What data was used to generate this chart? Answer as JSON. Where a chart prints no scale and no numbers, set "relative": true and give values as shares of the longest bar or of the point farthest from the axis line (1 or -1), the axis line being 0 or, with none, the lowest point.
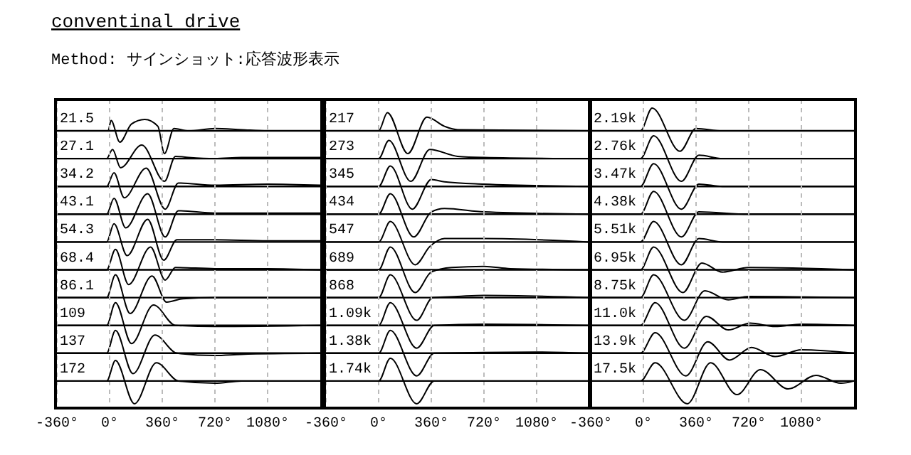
{
  "chart_data": [
    {
      "type": "other",
      "title": "conventinal drive",
      "subtitle": "Method: サインショット:応答波形表示"
    },
    {
      "type": "line",
      "title": "21.5",
      "relative": true,
      "color": "#000000",
      "xlim": [
        -360,
        1440
      ],
      "x": [
        -360,
        -10,
        10,
        70,
        150,
        240,
        330,
        375,
        440,
        540,
        720,
        900,
        1080,
        1440
      ],
      "values": [
        0,
        0,
        0.45,
        -0.5,
        0.3,
        0.5,
        0.2,
        -1,
        0.1,
        0,
        0.1,
        0.05,
        0,
        0
      ]
    },
    {
      "type": "line",
      "title": "27.1",
      "relative": true,
      "color": "#000000",
      "xlim": [
        -360,
        1440
      ],
      "x": [
        -360,
        -20,
        20,
        75,
        220,
        375,
        450,
        540,
        720,
        900,
        1440
      ],
      "values": [
        0,
        0,
        0.4,
        -0.4,
        0.6,
        -1,
        0.1,
        0.05,
        0,
        0.05,
        0.05
      ]
    },
    {
      "type": "line",
      "title": "34.2",
      "relative": true,
      "color": "#000000",
      "xlim": [
        -360,
        1440
      ],
      "x": [
        -360,
        -20,
        30,
        100,
        250,
        380,
        470,
        720,
        1080,
        1440
      ],
      "values": [
        0,
        0,
        0.6,
        -0.5,
        0.8,
        -1,
        0.15,
        0.05,
        0.1,
        0.05
      ]
    },
    {
      "type": "line",
      "title": "43.1",
      "relative": true,
      "color": "#000000",
      "xlim": [
        -360,
        1440
      ],
      "x": [
        -360,
        -20,
        30,
        110,
        260,
        380,
        470,
        720,
        1080,
        1440
      ],
      "values": [
        0,
        0,
        0.7,
        -0.6,
        0.9,
        -1,
        0.15,
        0.05,
        0.05,
        0.05
      ]
    },
    {
      "type": "line",
      "title": "54.3",
      "relative": true,
      "color": "#000000",
      "xlim": [
        -360,
        1440
      ],
      "x": [
        -360,
        -20,
        30,
        120,
        260,
        370,
        460,
        720,
        1080,
        1440
      ],
      "values": [
        0,
        0,
        0.8,
        -0.6,
        1,
        -0.8,
        0.1,
        0.1,
        0.05,
        0.05
      ]
    },
    {
      "type": "line",
      "title": "68.4",
      "relative": true,
      "color": "#000000",
      "xlim": [
        -360,
        1440
      ],
      "x": [
        -360,
        -20,
        40,
        130,
        280,
        380,
        450,
        720,
        1080,
        1440
      ],
      "values": [
        0,
        0,
        0.9,
        -0.65,
        1,
        -0.45,
        0.1,
        0.05,
        0.05,
        0
      ]
    },
    {
      "type": "line",
      "title": "86.1",
      "relative": true,
      "color": "#000000",
      "xlim": [
        -360,
        1440
      ],
      "x": [
        -360,
        -20,
        40,
        140,
        290,
        390,
        500,
        720,
        1440
      ],
      "values": [
        0,
        0,
        1,
        -0.7,
        0.95,
        -0.2,
        -0.05,
        0,
        0
      ]
    },
    {
      "type": "line",
      "title": "109",
      "relative": true,
      "color": "#000000",
      "xlim": [
        -360,
        1440
      ],
      "x": [
        -360,
        -20,
        40,
        150,
        300,
        450,
        720,
        1440
      ],
      "values": [
        0,
        0,
        1,
        -0.8,
        0.9,
        0,
        -0.05,
        0
      ]
    },
    {
      "type": "line",
      "title": "137",
      "relative": true,
      "color": "#000000",
      "xlim": [
        -360,
        1440
      ],
      "x": [
        -360,
        -20,
        40,
        160,
        310,
        460,
        720,
        900,
        1440
      ],
      "values": [
        0,
        0,
        1,
        -0.9,
        0.8,
        0,
        -0.1,
        -0.05,
        0
      ]
    },
    {
      "type": "line",
      "title": "172",
      "relative": true,
      "color": "#000000",
      "grid": "x",
      "xlim": [
        -360,
        1440
      ],
      "xticks": [
        {
          "value": -360,
          "label": "-360°"
        },
        {
          "value": 0,
          "label": "0°"
        },
        {
          "value": 360,
          "label": "360°"
        },
        {
          "value": 720,
          "label": "720°"
        },
        {
          "value": 1080,
          "label": "1080°"
        }
      ],
      "x": [
        -360,
        -20,
        40,
        170,
        320,
        470,
        720,
        900,
        1440
      ],
      "values": [
        0,
        0,
        0.9,
        -1,
        0.8,
        0,
        -0.1,
        0,
        0
      ]
    },
    {
      "type": "line",
      "title": "217",
      "relative": true,
      "color": "#000000",
      "xlim": [
        -360,
        1440
      ],
      "x": [
        -360,
        0,
        60,
        200,
        330,
        450,
        540,
        1440
      ],
      "values": [
        0,
        0,
        0.8,
        -1,
        0.6,
        0.2,
        0.05,
        0
      ]
    },
    {
      "type": "line",
      "title": "273",
      "relative": true,
      "color": "#000000",
      "xlim": [
        -360,
        1440
      ],
      "x": [
        -360,
        0,
        70,
        220,
        350,
        540,
        720,
        1440
      ],
      "values": [
        0,
        0,
        0.8,
        -1,
        0.4,
        0.1,
        0.05,
        0
      ]
    },
    {
      "type": "line",
      "title": "345",
      "relative": true,
      "color": "#000000",
      "xlim": [
        -360,
        1440
      ],
      "x": [
        -360,
        0,
        80,
        230,
        360,
        450,
        720,
        1440
      ],
      "values": [
        0,
        0,
        0.9,
        -1,
        0.3,
        0.2,
        0.1,
        0
      ]
    },
    {
      "type": "line",
      "title": "434",
      "relative": true,
      "color": "#000000",
      "xlim": [
        -360,
        1440
      ],
      "x": [
        -360,
        0,
        80,
        240,
        360,
        450,
        720,
        1440
      ],
      "values": [
        0,
        0,
        0.9,
        -1,
        0.1,
        0.25,
        0.1,
        0
      ]
    },
    {
      "type": "line",
      "title": "547",
      "relative": true,
      "color": "#000000",
      "xlim": [
        -360,
        1440
      ],
      "x": [
        -360,
        0,
        80,
        250,
        350,
        450,
        720,
        1440
      ],
      "values": [
        0,
        0,
        0.9,
        -1,
        -0.2,
        0.15,
        0.15,
        0
      ]
    },
    {
      "type": "line",
      "title": "689",
      "relative": true,
      "color": "#000000",
      "xlim": [
        -360,
        1440
      ],
      "x": [
        -360,
        0,
        80,
        250,
        360,
        500,
        720,
        900,
        1440
      ],
      "values": [
        0,
        0,
        1,
        -1,
        -0.1,
        0.1,
        0.15,
        0.05,
        0
      ]
    },
    {
      "type": "line",
      "title": "868",
      "relative": true,
      "color": "#000000",
      "xlim": [
        -360,
        1440
      ],
      "x": [
        -360,
        0,
        80,
        260,
        370,
        540,
        720,
        1440
      ],
      "values": [
        0,
        0,
        1,
        -1,
        0,
        0.05,
        0.1,
        0
      ]
    },
    {
      "type": "line",
      "title": "1.09k",
      "relative": true,
      "color": "#000000",
      "xlim": [
        -360,
        1440
      ],
      "x": [
        -360,
        0,
        80,
        260,
        380,
        720,
        1440
      ],
      "values": [
        0,
        0,
        1,
        -1,
        0,
        0.05,
        0
      ]
    },
    {
      "type": "line",
      "title": "1.38k",
      "relative": true,
      "color": "#000000",
      "xlim": [
        -360,
        1440
      ],
      "x": [
        -360,
        0,
        80,
        260,
        380,
        1080,
        1440
      ],
      "values": [
        0,
        0,
        1,
        -1,
        0,
        0.05,
        0
      ]
    },
    {
      "type": "line",
      "title": "1.74k",
      "relative": true,
      "color": "#000000",
      "grid": "x",
      "xlim": [
        -360,
        1440
      ],
      "xticks": [
        {
          "value": -360,
          "label": "-360°"
        },
        {
          "value": 0,
          "label": "0°"
        },
        {
          "value": 360,
          "label": "360°"
        },
        {
          "value": 720,
          "label": "720°"
        },
        {
          "value": 1080,
          "label": "1080°"
        }
      ],
      "x": [
        -360,
        0,
        80,
        260,
        380,
        1440
      ],
      "values": [
        0,
        0,
        1,
        -1,
        0,
        0
      ]
    },
    {
      "type": "line",
      "title": "2.19k",
      "relative": true,
      "color": "#000000",
      "xlim": [
        -360,
        1440
      ],
      "x": [
        -360,
        -20,
        60,
        250,
        360,
        540,
        1440
      ],
      "values": [
        0,
        0,
        1,
        -0.9,
        0.1,
        0,
        0
      ]
    },
    {
      "type": "line",
      "title": "2.76k",
      "relative": true,
      "color": "#000000",
      "xlim": [
        -360,
        1440
      ],
      "x": [
        -360,
        -20,
        70,
        260,
        380,
        540,
        1440
      ],
      "values": [
        0,
        0,
        1,
        -1,
        0.15,
        0,
        0
      ]
    },
    {
      "type": "line",
      "title": "3.47k",
      "relative": true,
      "color": "#000000",
      "xlim": [
        -360,
        1440
      ],
      "x": [
        -360,
        -20,
        70,
        260,
        380,
        540,
        1440
      ],
      "values": [
        0,
        0,
        1,
        -1,
        0.1,
        0,
        0
      ]
    },
    {
      "type": "line",
      "title": "4.38k",
      "relative": true,
      "color": "#000000",
      "xlim": [
        -360,
        1440
      ],
      "x": [
        -360,
        -20,
        70,
        260,
        380,
        720,
        1440
      ],
      "values": [
        0,
        0,
        1,
        -1,
        0.1,
        0,
        0
      ]
    },
    {
      "type": "line",
      "title": "5.51k",
      "relative": true,
      "color": "#000000",
      "xlim": [
        -360,
        1440
      ],
      "x": [
        -360,
        -20,
        70,
        260,
        380,
        540,
        1440
      ],
      "values": [
        0,
        0,
        0.9,
        -1,
        0.15,
        0,
        0
      ]
    },
    {
      "type": "line",
      "title": "6.95k",
      "relative": true,
      "color": "#000000",
      "xlim": [
        -360,
        1440
      ],
      "x": [
        -360,
        -20,
        70,
        270,
        400,
        540,
        720,
        1440
      ],
      "values": [
        0,
        0,
        1,
        -1,
        0.3,
        -0.1,
        0.1,
        0
      ]
    },
    {
      "type": "line",
      "title": "8.75k",
      "relative": true,
      "color": "#000000",
      "xlim": [
        -360,
        1440
      ],
      "x": [
        -360,
        -20,
        70,
        280,
        420,
        580,
        720,
        1440
      ],
      "values": [
        0,
        0,
        1,
        -1,
        0.3,
        -0.1,
        0.05,
        0
      ]
    },
    {
      "type": "line",
      "title": "11.0k",
      "relative": true,
      "color": "#000000",
      "xlim": [
        -360,
        1440
      ],
      "x": [
        -360,
        -20,
        80,
        280,
        430,
        580,
        730,
        900,
        1080,
        1440
      ],
      "values": [
        0,
        0,
        1,
        -1,
        0.4,
        -0.2,
        0.1,
        -0.05,
        0.05,
        0
      ]
    },
    {
      "type": "line",
      "title": "13.9k",
      "relative": true,
      "color": "#000000",
      "xlim": [
        -360,
        1440
      ],
      "x": [
        -360,
        -20,
        80,
        290,
        440,
        590,
        740,
        900,
        1080,
        1440
      ],
      "values": [
        0,
        0,
        0.9,
        -1,
        0.5,
        -0.3,
        0.25,
        -0.15,
        0.15,
        0
      ]
    },
    {
      "type": "line",
      "title": "17.5k",
      "relative": true,
      "color": "#000000",
      "grid": "x",
      "xlim": [
        -360,
        1440
      ],
      "xticks": [
        {
          "value": -360,
          "label": "-360°"
        },
        {
          "value": 0,
          "label": "0°"
        },
        {
          "value": 360,
          "label": "360°"
        },
        {
          "value": 720,
          "label": "720°"
        },
        {
          "value": 1080,
          "label": "1080°"
        }
      ],
      "x": [
        -360,
        -20,
        80,
        300,
        460,
        640,
        800,
        990,
        1180,
        1350,
        1440
      ],
      "values": [
        0,
        0,
        0.8,
        -1,
        0.8,
        -0.6,
        0.5,
        -0.35,
        0.25,
        -0.1,
        0
      ]
    }
  ]
}
